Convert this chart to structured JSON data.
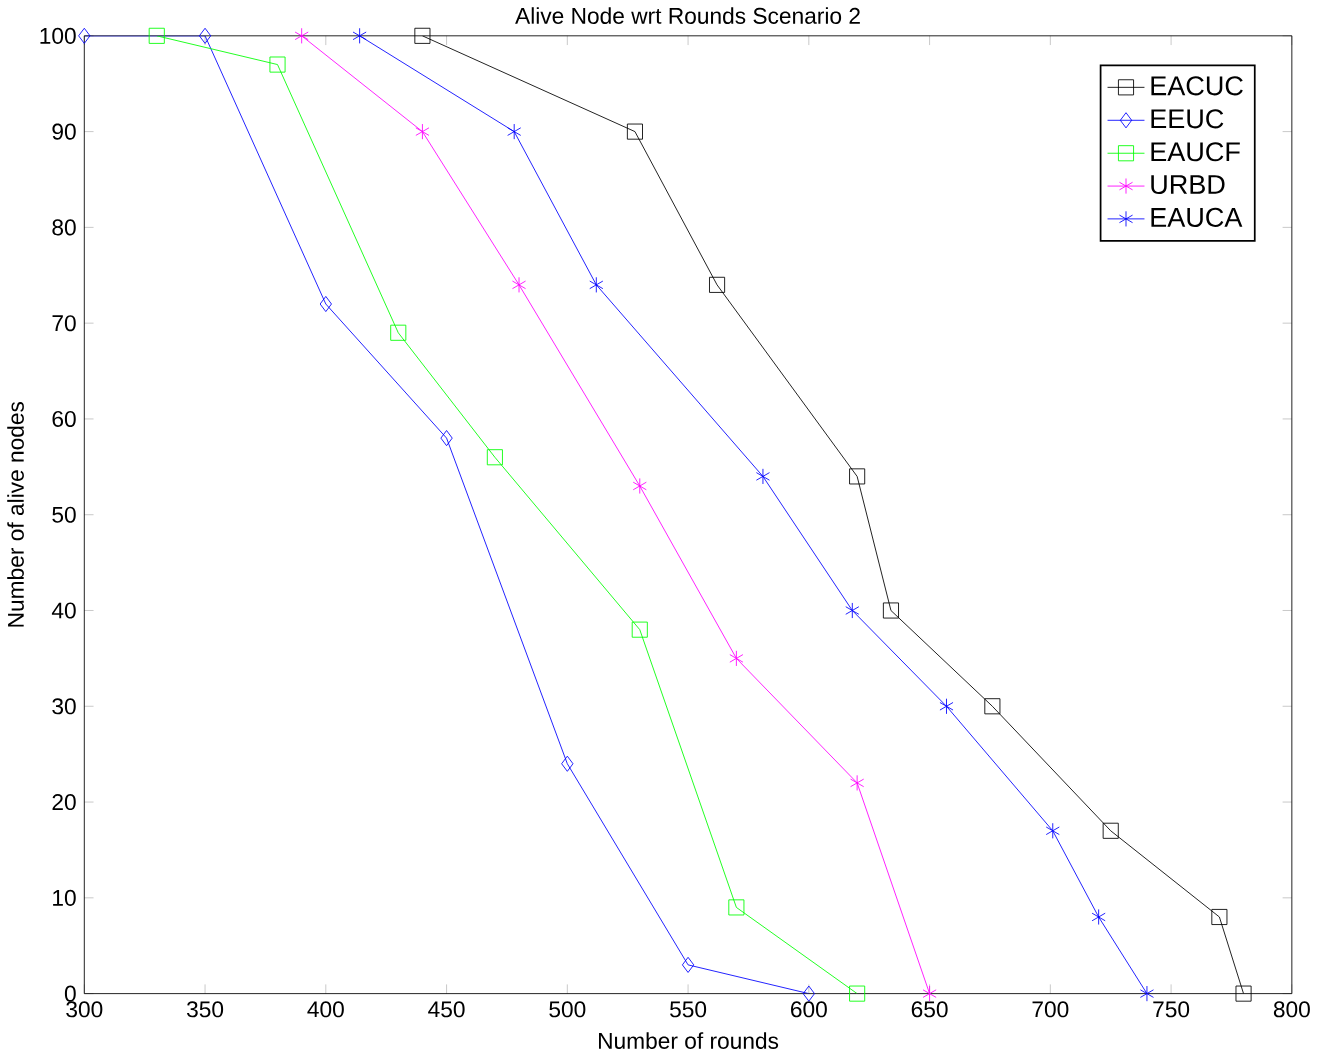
{
  "chart_data": {
    "type": "line",
    "title": "Alive Node wrt Rounds Scenario 2",
    "xlabel": "Number of rounds",
    "ylabel": "Number of alive nodes",
    "xlim": [
      300,
      800
    ],
    "ylim": [
      0,
      100
    ],
    "xticks": [
      300,
      350,
      400,
      450,
      500,
      550,
      600,
      650,
      700,
      750,
      800
    ],
    "yticks": [
      0,
      10,
      20,
      30,
      40,
      50,
      60,
      70,
      80,
      90,
      100
    ],
    "grid": false,
    "legend": "top right",
    "series": [
      {
        "name": "EACUC",
        "color": "#000000",
        "marker": "square",
        "x": [
          440,
          528,
          562,
          620,
          634,
          676,
          725,
          770,
          780
        ],
        "values": [
          100,
          90,
          74,
          54,
          40,
          30,
          17,
          8,
          0
        ]
      },
      {
        "name": "EEUC",
        "color": "#0000ff",
        "marker": "diamond",
        "x": [
          300,
          350,
          400,
          450,
          500,
          550,
          600
        ],
        "values": [
          100,
          100,
          72,
          58,
          24,
          3,
          0
        ]
      },
      {
        "name": "EAUCF",
        "color": "#00ff00",
        "marker": "square",
        "x": [
          330,
          380,
          430,
          470,
          530,
          570,
          620
        ],
        "values": [
          100,
          97,
          69,
          56,
          38,
          9,
          0
        ]
      },
      {
        "name": "URBD",
        "color": "#ff00ff",
        "marker": "cross",
        "x": [
          390,
          440,
          480,
          530,
          570,
          620,
          650
        ],
        "values": [
          100,
          90,
          74,
          53,
          35,
          22,
          0
        ]
      },
      {
        "name": "EAUCA",
        "color": "#0000ff",
        "marker": "cross",
        "x": [
          414,
          478,
          512,
          581,
          618,
          657,
          701,
          720,
          740
        ],
        "values": [
          100,
          90,
          74,
          54,
          40,
          30,
          17,
          8,
          0
        ]
      }
    ]
  }
}
